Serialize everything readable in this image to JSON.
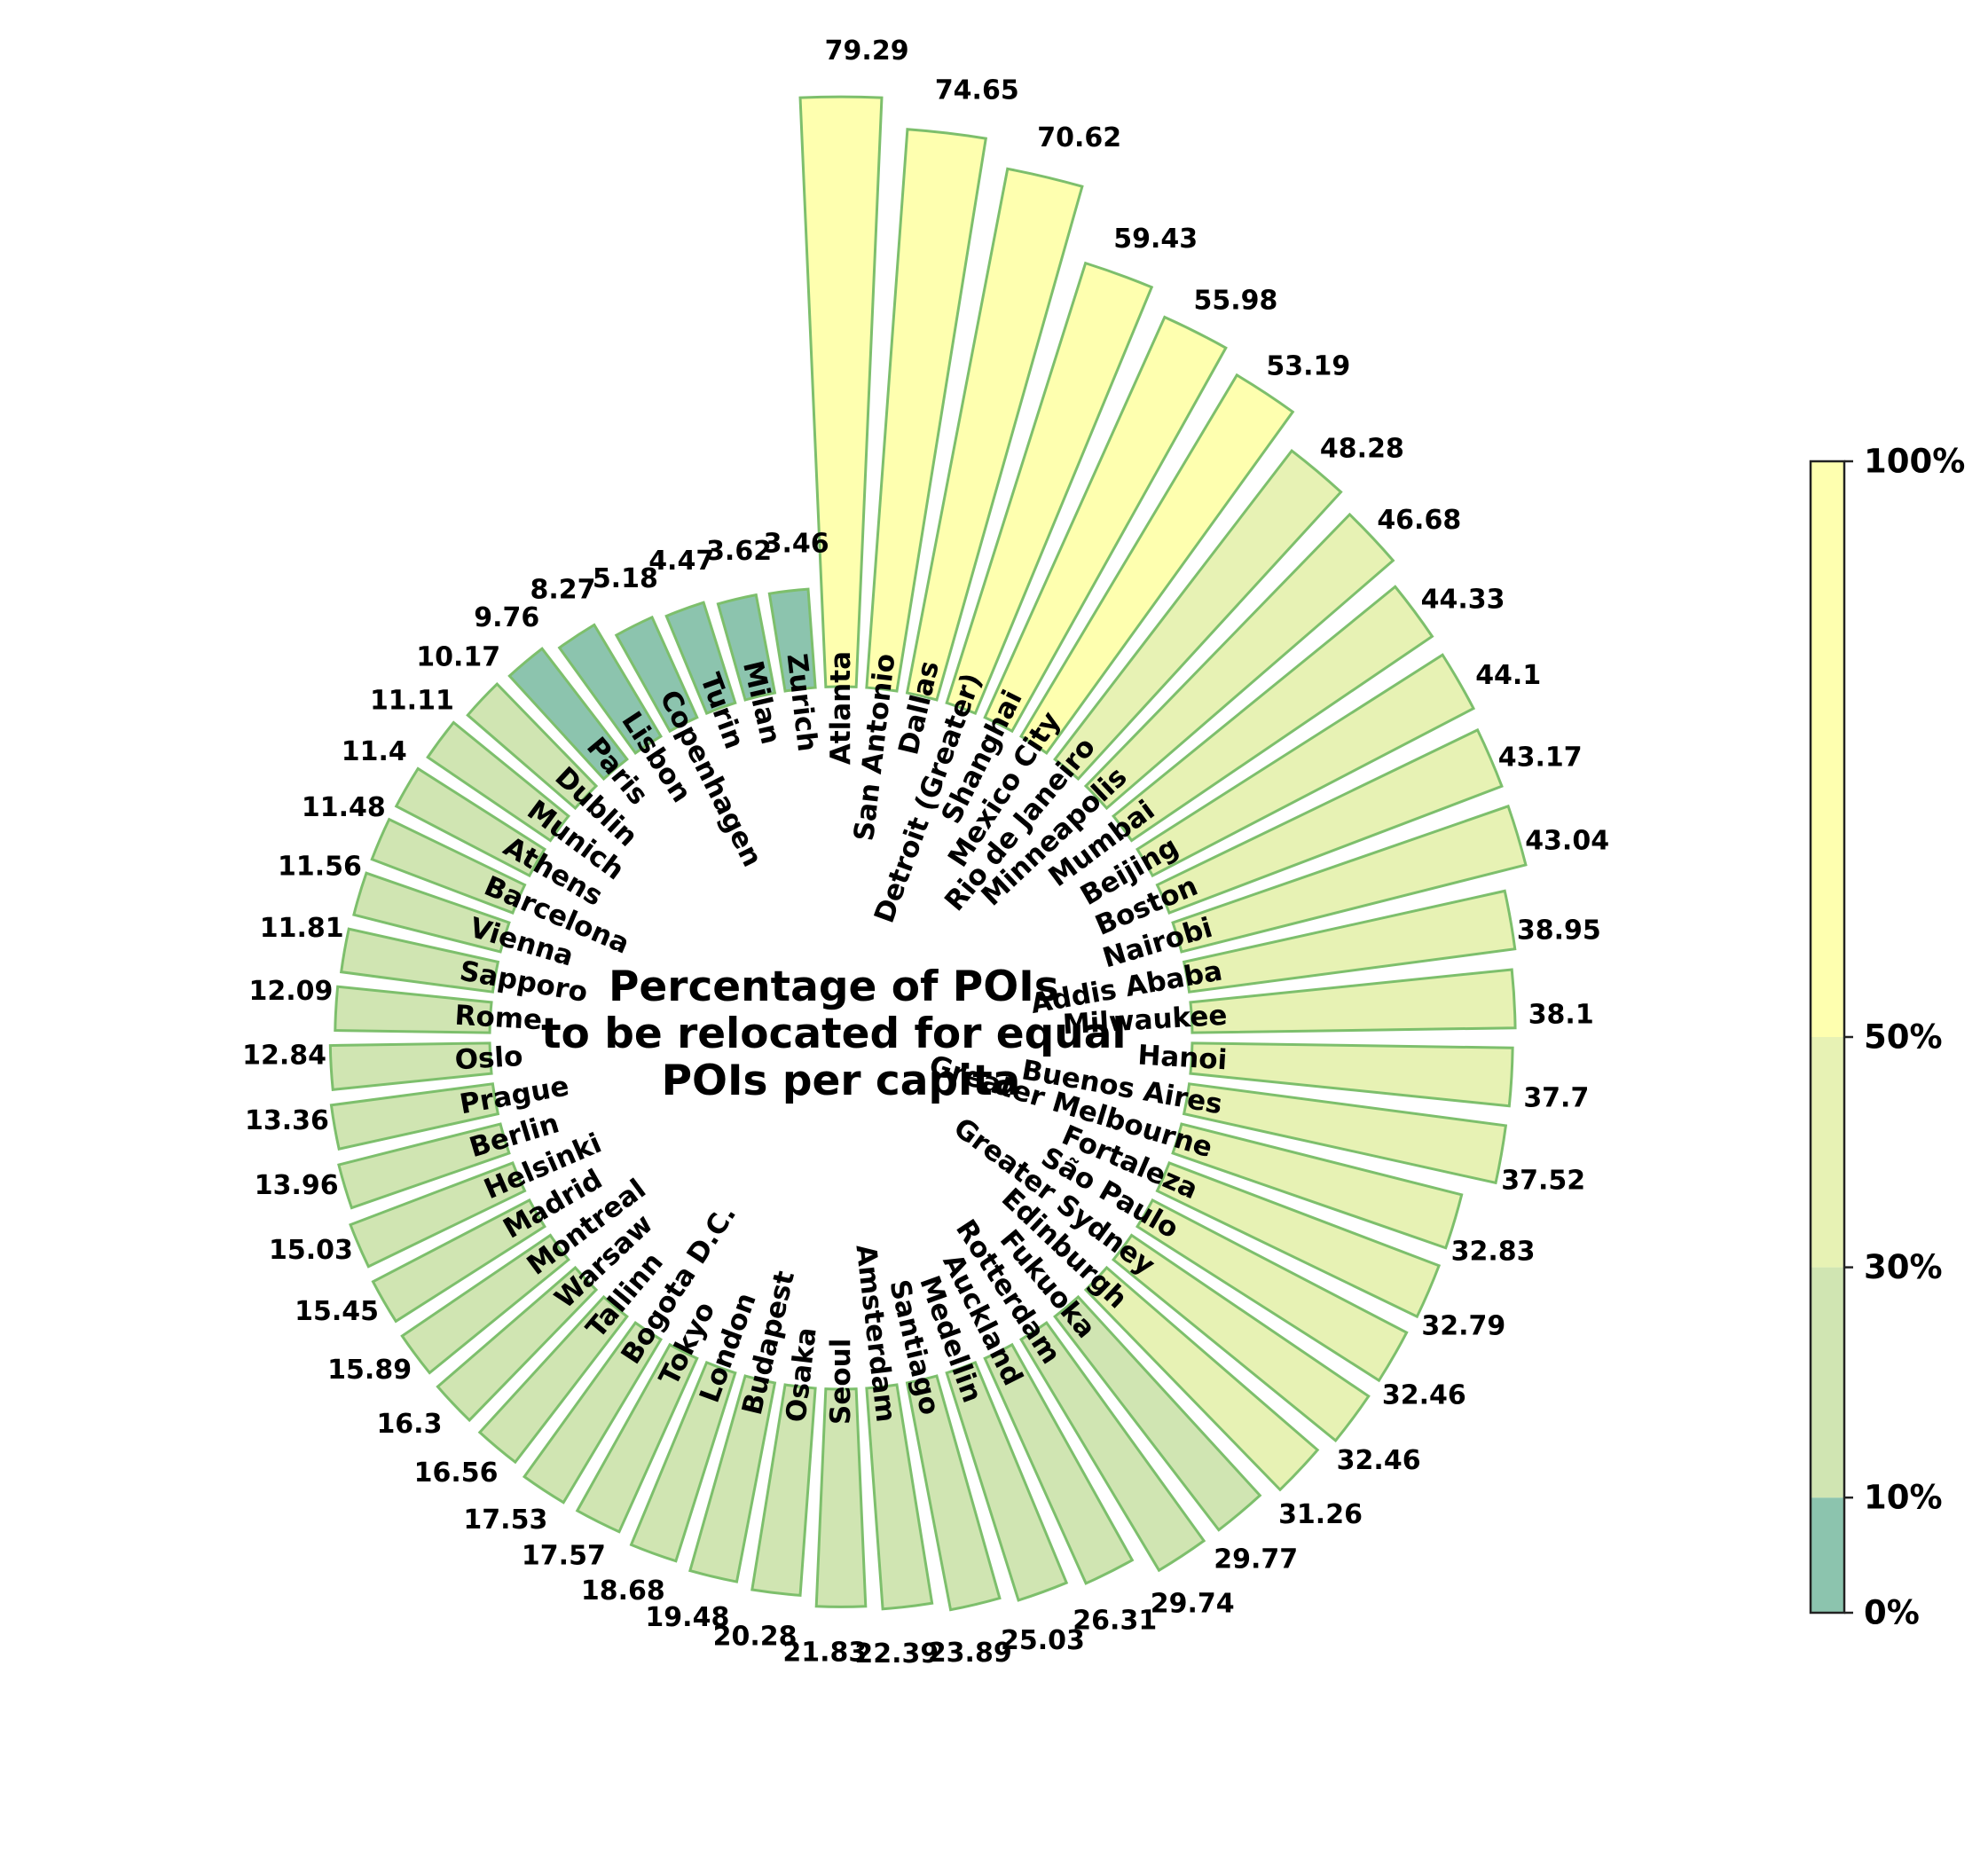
{
  "chart_data": {
    "type": "bar",
    "subtype": "circular-bar",
    "title_lines": [
      "Percentage of POIs",
      "to be relocated for equal",
      "POIs per capita"
    ],
    "categories": [
      "Atlanta",
      "San Antonio",
      "Dallas",
      "Detroit (Greater)",
      "Shanghai",
      "Mexico City",
      "Rio de Janeiro",
      "Minneapolis",
      "Mumbai",
      "Beijing",
      "Boston",
      "Nairobi",
      "Addis Ababa",
      "Milwaukee",
      "Hanoi",
      "Buenos Aires",
      "Greater Melbourne",
      "Fortaleza",
      "São Paulo",
      "Greater Sydney",
      "Edinburgh",
      "Fukuoka",
      "Rotterdam",
      "Auckland",
      "Medellin",
      "Santiago",
      "Amsterdam",
      "Seoul",
      "Osaka",
      "Budapest",
      "London",
      "Tokyo",
      "Bogota D.C.",
      "Tallinn",
      "Warsaw",
      "Montreal",
      "Madrid",
      "Helsinki",
      "Berlin",
      "Prague",
      "Oslo",
      "Rome",
      "Sapporo",
      "Vienna",
      "Barcelona",
      "Athens",
      "Munich",
      "Dublin",
      "Paris",
      "Lisbon",
      "Copenhagen",
      "Turin",
      "Milan",
      "Zurich"
    ],
    "values": [
      79.29,
      74.65,
      70.62,
      59.43,
      55.98,
      53.19,
      48.28,
      46.68,
      44.33,
      44.1,
      43.17,
      43.04,
      38.95,
      38.1,
      37.7,
      37.52,
      32.83,
      32.79,
      32.46,
      32.46,
      31.26,
      29.77,
      29.74,
      26.31,
      25.03,
      23.89,
      22.39,
      21.83,
      20.28,
      19.48,
      18.68,
      17.57,
      17.53,
      16.56,
      16.3,
      15.89,
      15.45,
      15.03,
      13.96,
      13.36,
      12.84,
      12.09,
      11.81,
      11.56,
      11.48,
      11.4,
      11.11,
      10.17,
      9.76,
      8.27,
      5.18,
      4.47,
      3.62,
      3.46
    ],
    "value_labels": [
      "79.29",
      "74.65",
      "70.62",
      "59.43",
      "55.98",
      "53.19",
      "48.28",
      "46.68",
      "44.33",
      "44.1",
      "43.17",
      "43.04",
      "38.95",
      "38.1",
      "37.7",
      "37.52",
      "32.83",
      "32.79",
      "32.46",
      "32.46",
      "31.26",
      "29.77",
      "29.74",
      "26.31",
      "25.03",
      "23.89",
      "22.39",
      "21.83",
      "20.28",
      "19.48",
      "18.68",
      "17.57",
      "17.53",
      "16.56",
      "16.3",
      "15.89",
      "15.45",
      "15.03",
      "13.96",
      "13.36",
      "12.84",
      "12.09",
      "11.81",
      "11.56",
      "11.48",
      "11.4",
      "11.11",
      "10.17",
      "9.76",
      "8.27",
      "5.18",
      "4.47",
      "3.62",
      "3.46"
    ],
    "color_bins": [
      {
        "min": 0,
        "max": 10,
        "color": "#8cc4ae"
      },
      {
        "min": 10,
        "max": 30,
        "color": "#d0e5b2"
      },
      {
        "min": 30,
        "max": 50,
        "color": "#e7f2b4"
      },
      {
        "min": 50,
        "max": 100,
        "color": "#feffaf"
      }
    ],
    "edge_color": "#7dbf6c",
    "colorbar": {
      "ticks": [
        0,
        10,
        30,
        50,
        100
      ],
      "tick_labels": [
        "0%",
        "10%",
        "30%",
        "50%",
        "100%"
      ]
    }
  }
}
